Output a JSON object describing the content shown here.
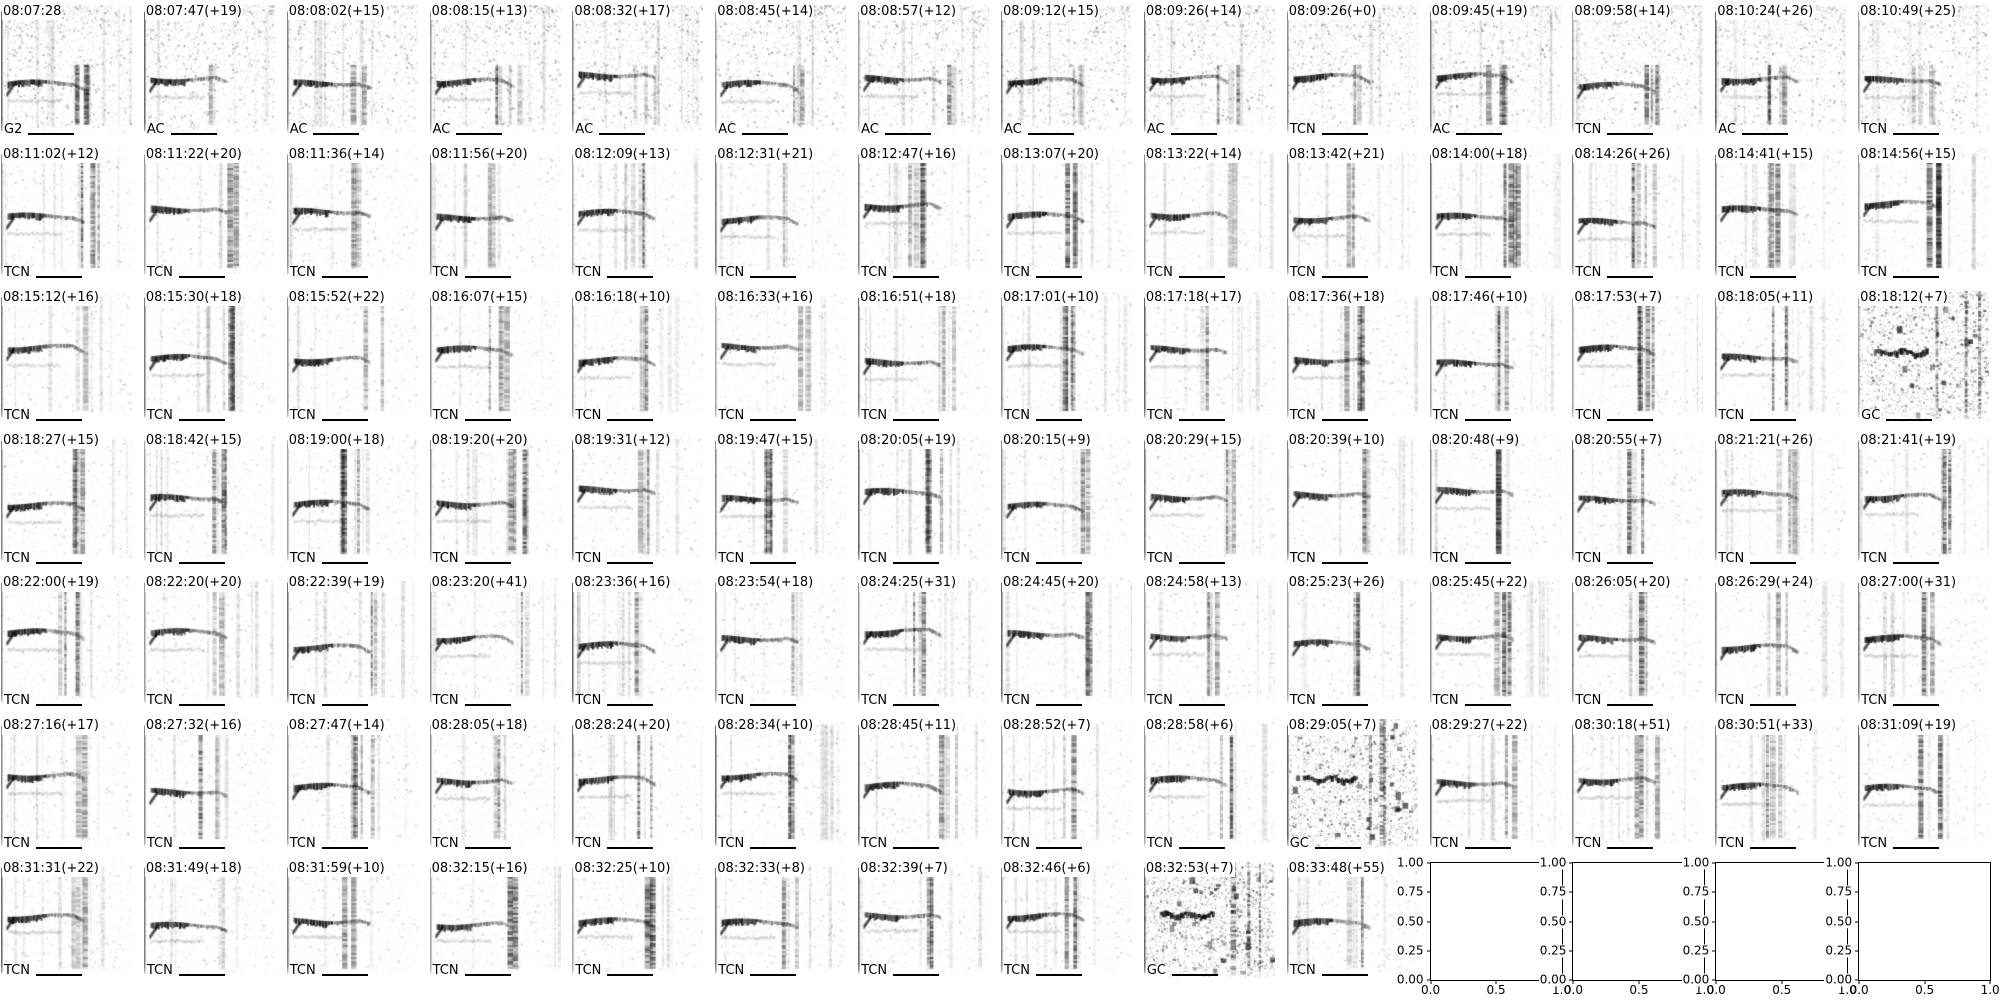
{
  "chart_data": {
    "type": "heatmap",
    "title": "",
    "description": "7x14 grid of grayscale audio spectrogram subplots; each has a detection timestamp title (with +seconds gap) and a classifier label at bottom-left; three GC-labeled subplots are outlined in red; last four grid slots are empty default axes.",
    "grid": {
      "rows": 7,
      "cols": 14,
      "filled_subplots": 94,
      "empty_axes_count": 4
    },
    "colors": {
      "background": "#ffffff",
      "ink": "#000000",
      "highlight_border": "#ff0000"
    },
    "subplots": [
      {
        "title": "08:07:28",
        "label": "G2",
        "highlighted": false
      },
      {
        "title": "08:07:47(+19)",
        "label": "AC",
        "highlighted": false
      },
      {
        "title": "08:08:02(+15)",
        "label": "AC",
        "highlighted": false
      },
      {
        "title": "08:08:15(+13)",
        "label": "AC",
        "highlighted": false
      },
      {
        "title": "08:08:32(+17)",
        "label": "AC",
        "highlighted": false
      },
      {
        "title": "08:08:45(+14)",
        "label": "AC",
        "highlighted": false
      },
      {
        "title": "08:08:57(+12)",
        "label": "AC",
        "highlighted": false
      },
      {
        "title": "08:09:12(+15)",
        "label": "AC",
        "highlighted": false
      },
      {
        "title": "08:09:26(+14)",
        "label": "AC",
        "highlighted": false
      },
      {
        "title": "08:09:26(+0)",
        "label": "TCN",
        "highlighted": false
      },
      {
        "title": "08:09:45(+19)",
        "label": "AC",
        "highlighted": false
      },
      {
        "title": "08:09:58(+14)",
        "label": "TCN",
        "highlighted": false
      },
      {
        "title": "08:10:24(+26)",
        "label": "AC",
        "highlighted": false
      },
      {
        "title": "08:10:49(+25)",
        "label": "TCN",
        "highlighted": false
      },
      {
        "title": "08:11:02(+12)",
        "label": "TCN",
        "highlighted": false
      },
      {
        "title": "08:11:22(+20)",
        "label": "TCN",
        "highlighted": false
      },
      {
        "title": "08:11:36(+14)",
        "label": "TCN",
        "highlighted": false
      },
      {
        "title": "08:11:56(+20)",
        "label": "TCN",
        "highlighted": false
      },
      {
        "title": "08:12:09(+13)",
        "label": "TCN",
        "highlighted": false
      },
      {
        "title": "08:12:31(+21)",
        "label": "TCN",
        "highlighted": false
      },
      {
        "title": "08:12:47(+16)",
        "label": "TCN",
        "highlighted": false
      },
      {
        "title": "08:13:07(+20)",
        "label": "TCN",
        "highlighted": false
      },
      {
        "title": "08:13:22(+14)",
        "label": "TCN",
        "highlighted": false
      },
      {
        "title": "08:13:42(+21)",
        "label": "TCN",
        "highlighted": false
      },
      {
        "title": "08:14:00(+18)",
        "label": "TCN",
        "highlighted": false
      },
      {
        "title": "08:14:26(+26)",
        "label": "TCN",
        "highlighted": false
      },
      {
        "title": "08:14:41(+15)",
        "label": "TCN",
        "highlighted": false
      },
      {
        "title": "08:14:56(+15)",
        "label": "TCN",
        "highlighted": false
      },
      {
        "title": "08:15:12(+16)",
        "label": "TCN",
        "highlighted": false
      },
      {
        "title": "08:15:30(+18)",
        "label": "TCN",
        "highlighted": false
      },
      {
        "title": "08:15:52(+22)",
        "label": "TCN",
        "highlighted": false
      },
      {
        "title": "08:16:07(+15)",
        "label": "TCN",
        "highlighted": false
      },
      {
        "title": "08:16:18(+10)",
        "label": "TCN",
        "highlighted": false
      },
      {
        "title": "08:16:33(+16)",
        "label": "TCN",
        "highlighted": false
      },
      {
        "title": "08:16:51(+18)",
        "label": "TCN",
        "highlighted": false
      },
      {
        "title": "08:17:01(+10)",
        "label": "TCN",
        "highlighted": false
      },
      {
        "title": "08:17:18(+17)",
        "label": "TCN",
        "highlighted": false
      },
      {
        "title": "08:17:36(+18)",
        "label": "TCN",
        "highlighted": false
      },
      {
        "title": "08:17:46(+10)",
        "label": "TCN",
        "highlighted": false
      },
      {
        "title": "08:17:53(+7)",
        "label": "TCN",
        "highlighted": false
      },
      {
        "title": "08:18:05(+11)",
        "label": "TCN",
        "highlighted": false
      },
      {
        "title": "08:18:12(+7)",
        "label": "GC",
        "highlighted": true
      },
      {
        "title": "08:18:27(+15)",
        "label": "TCN",
        "highlighted": false
      },
      {
        "title": "08:18:42(+15)",
        "label": "TCN",
        "highlighted": false
      },
      {
        "title": "08:19:00(+18)",
        "label": "TCN",
        "highlighted": false
      },
      {
        "title": "08:19:20(+20)",
        "label": "TCN",
        "highlighted": false
      },
      {
        "title": "08:19:31(+12)",
        "label": "TCN",
        "highlighted": false
      },
      {
        "title": "08:19:47(+15)",
        "label": "TCN",
        "highlighted": false
      },
      {
        "title": "08:20:05(+19)",
        "label": "TCN",
        "highlighted": false
      },
      {
        "title": "08:20:15(+9)",
        "label": "TCN",
        "highlighted": false
      },
      {
        "title": "08:20:29(+15)",
        "label": "TCN",
        "highlighted": false
      },
      {
        "title": "08:20:39(+10)",
        "label": "TCN",
        "highlighted": false
      },
      {
        "title": "08:20:48(+9)",
        "label": "TCN",
        "highlighted": false
      },
      {
        "title": "08:20:55(+7)",
        "label": "TCN",
        "highlighted": false
      },
      {
        "title": "08:21:21(+26)",
        "label": "TCN",
        "highlighted": false
      },
      {
        "title": "08:21:41(+19)",
        "label": "TCN",
        "highlighted": false
      },
      {
        "title": "08:22:00(+19)",
        "label": "TCN",
        "highlighted": false
      },
      {
        "title": "08:22:20(+20)",
        "label": "TCN",
        "highlighted": false
      },
      {
        "title": "08:22:39(+19)",
        "label": "TCN",
        "highlighted": false
      },
      {
        "title": "08:23:20(+41)",
        "label": "TCN",
        "highlighted": false
      },
      {
        "title": "08:23:36(+16)",
        "label": "TCN",
        "highlighted": false
      },
      {
        "title": "08:23:54(+18)",
        "label": "TCN",
        "highlighted": false
      },
      {
        "title": "08:24:25(+31)",
        "label": "TCN",
        "highlighted": false
      },
      {
        "title": "08:24:45(+20)",
        "label": "TCN",
        "highlighted": false
      },
      {
        "title": "08:24:58(+13)",
        "label": "TCN",
        "highlighted": false
      },
      {
        "title": "08:25:23(+26)",
        "label": "TCN",
        "highlighted": false
      },
      {
        "title": "08:25:45(+22)",
        "label": "TCN",
        "highlighted": false
      },
      {
        "title": "08:26:05(+20)",
        "label": "TCN",
        "highlighted": false
      },
      {
        "title": "08:26:29(+24)",
        "label": "TCN",
        "highlighted": false
      },
      {
        "title": "08:27:00(+31)",
        "label": "TCN",
        "highlighted": false
      },
      {
        "title": "08:27:16(+17)",
        "label": "TCN",
        "highlighted": false
      },
      {
        "title": "08:27:32(+16)",
        "label": "TCN",
        "highlighted": false
      },
      {
        "title": "08:27:47(+14)",
        "label": "TCN",
        "highlighted": false
      },
      {
        "title": "08:28:05(+18)",
        "label": "TCN",
        "highlighted": false
      },
      {
        "title": "08:28:24(+20)",
        "label": "TCN",
        "highlighted": false
      },
      {
        "title": "08:28:34(+10)",
        "label": "TCN",
        "highlighted": false
      },
      {
        "title": "08:28:45(+11)",
        "label": "TCN",
        "highlighted": false
      },
      {
        "title": "08:28:52(+7)",
        "label": "TCN",
        "highlighted": false
      },
      {
        "title": "08:28:58(+6)",
        "label": "TCN",
        "highlighted": false
      },
      {
        "title": "08:29:05(+7)",
        "label": "GC",
        "highlighted": true
      },
      {
        "title": "08:29:27(+22)",
        "label": "TCN",
        "highlighted": false
      },
      {
        "title": "08:30:18(+51)",
        "label": "TCN",
        "highlighted": false
      },
      {
        "title": "08:30:51(+33)",
        "label": "TCN",
        "highlighted": false
      },
      {
        "title": "08:31:09(+19)",
        "label": "TCN",
        "highlighted": false
      },
      {
        "title": "08:31:31(+22)",
        "label": "TCN",
        "highlighted": false
      },
      {
        "title": "08:31:49(+18)",
        "label": "TCN",
        "highlighted": false
      },
      {
        "title": "08:31:59(+10)",
        "label": "TCN",
        "highlighted": false
      },
      {
        "title": "08:32:15(+16)",
        "label": "TCN",
        "highlighted": false
      },
      {
        "title": "08:32:25(+10)",
        "label": "TCN",
        "highlighted": false
      },
      {
        "title": "08:32:33(+8)",
        "label": "TCN",
        "highlighted": false
      },
      {
        "title": "08:32:39(+7)",
        "label": "TCN",
        "highlighted": false
      },
      {
        "title": "08:32:46(+6)",
        "label": "TCN",
        "highlighted": false
      },
      {
        "title": "08:32:53(+7)",
        "label": "GC",
        "highlighted": true
      },
      {
        "title": "08:33:48(+55)",
        "label": "TCN",
        "highlighted": false
      }
    ],
    "empty_axes": {
      "y_ticks": [
        "1.00",
        "0.75",
        "0.50",
        "0.25",
        "0.00"
      ],
      "x_ticks": [
        "0.0",
        "0.5",
        "1.0"
      ],
      "ylim": [
        0.0,
        1.0
      ],
      "xlim": [
        0.0,
        1.0
      ]
    }
  }
}
